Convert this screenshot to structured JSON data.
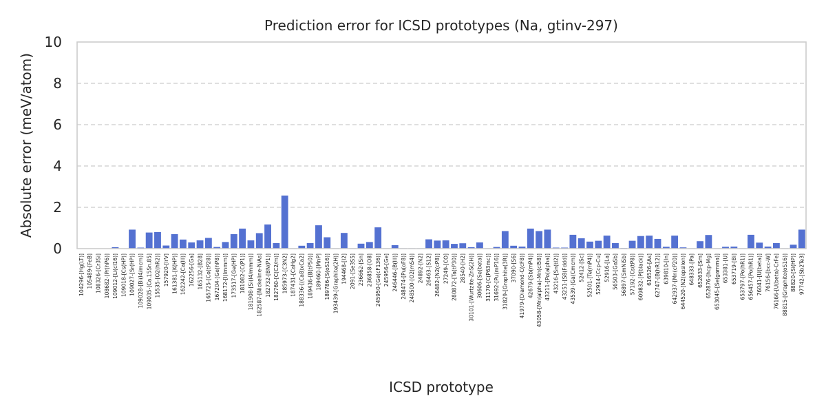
{
  "chart_data": {
    "type": "bar",
    "title": "Prediction error for ICSD prototypes (Na, gtinv-297)",
    "xlabel": "ICSD prototype",
    "ylabel": "Absolute error (meV/atom)",
    "ylim": [
      0,
      10
    ],
    "yticks": [
      0,
      2,
      4,
      6,
      8,
      10
    ],
    "grid": "y-dashed",
    "bar_color": "#5471d1",
    "categories": [
      "104296-[Hg(LT)]",
      "105489-[FeB]",
      "108326-[Cr3Si]",
      "108682-[Pr(hP6)]",
      "109012-[Li(cI16)]",
      "109018-[Cs(HP)]",
      "109027-[Sr(HP)]",
      "109028-[Bi(I4/mcm)]",
      "109035-[Ca.15Sn.85]",
      "15535-[O2(hR2)]",
      "157920-[IrV]",
      "161381-[K(HP)]",
      "162242-[Ca(III)]",
      "162256-[Ga]",
      "165132-[B28]",
      "165725-[Co(tP28)]",
      "167204-[Ge(hP8)]",
      "168172-[I(Immm)]",
      "173517-[Ge(HP)]",
      "181082-[C(P1)]",
      "181908-[Si(I4/mmm)]",
      "182587-[Nickeline-NiAs]",
      "182732-[BN(P1)]",
      "182760-[C(C2/m)]",
      "185973-[C3N2]",
      "187431-[CaHg2]",
      "188336-[(Ca8)xCa2]",
      "189436-[B(tP50)]",
      "189460-[MnP]",
      "189786-[S(oS16)]",
      "193439-[Graphite(2H)]",
      "194468-[I2]",
      "2091-[Se3S5]",
      "236662-[Sn]",
      "236858-[O8]",
      "245950-[Ge(cF136)]",
      "245956-[Ge]",
      "246446-[B(III)]",
      "248474-[Pu(oF8)]",
      "248500-[O2(mS4)]",
      "24892-[N2]",
      "26463-[S12]",
      "26482-[N2(cP8)]",
      "27249-[CO]",
      "280872-[Ta(tP30)]",
      "28540-[H2]",
      "30101-[Wurtzite-ZnS(2H)]",
      "30606-[Se(beta)]",
      "31170-[C(P63mc)]",
      "31692-[Pu(mP16)]",
      "31829-[Graphite(3R)]",
      "37090-[S6]",
      "41979-[Diamond-C(cF8)]",
      "42679-[Sb(mP4)]",
      "43058-[Mn(alpha)-Mn(cI58)]",
      "43211-[Po(alpha)]",
      "43216-[Sn(tI2)]",
      "43251-[S8(Fddd)]",
      "43539-[Ga(Cmcm)]",
      "52412-[Sc]",
      "52501-[Te(mP4)]",
      "52914-[Ccp-Cu]",
      "52916-[La]",
      "56503-[GaSb]",
      "56897-[SmNiSb]",
      "57192-[Cs(tP8)]",
      "609832-[P(black)]",
      "616526-[As]",
      "62747-[B(hR12)]",
      "639810-[In]",
      "642937-[Mn(cP20)]",
      "644520-[N2(epsilon)]",
      "648333-[Pa]",
      "652633-[Sm]",
      "652876-[hcp-Mg]",
      "653045-[Se(gamma)]",
      "653381-[U]",
      "653719-[Bi]",
      "653797-[Po(hR1)]",
      "656457-[Po(hR1)]",
      "76041-[U(beta)]",
      "76156-[bcc-W]",
      "76166-[U(beta)-CrFe]",
      "88815-[Graphite(oS16)]",
      "88820-[Si(HP)]",
      "97742-[Sb2Te3]"
    ],
    "values": [
      0.0,
      0.0,
      0.0,
      0.0,
      0.07,
      0.0,
      0.92,
      0.05,
      0.78,
      0.8,
      0.15,
      0.7,
      0.44,
      0.3,
      0.4,
      0.52,
      0.08,
      0.32,
      0.7,
      0.97,
      0.4,
      0.75,
      1.17,
      0.27,
      2.57,
      0.02,
      0.14,
      0.27,
      1.13,
      0.55,
      0.02,
      0.76,
      0.02,
      0.24,
      0.32,
      1.03,
      0.02,
      0.17,
      0.02,
      0.02,
      0.02,
      0.45,
      0.39,
      0.4,
      0.23,
      0.26,
      0.07,
      0.3,
      0.02,
      0.08,
      0.85,
      0.14,
      0.1,
      0.97,
      0.85,
      0.92,
      0.05,
      0.05,
      0.67,
      0.5,
      0.34,
      0.38,
      0.63,
      0.27,
      0.03,
      0.38,
      0.61,
      0.63,
      0.47,
      0.09,
      0.63,
      0.06,
      0.02,
      0.36,
      0.66,
      0.02,
      0.09,
      0.1,
      0.02,
      0.67,
      0.29,
      0.1,
      0.27,
      0.02,
      0.19,
      0.92
    ]
  }
}
